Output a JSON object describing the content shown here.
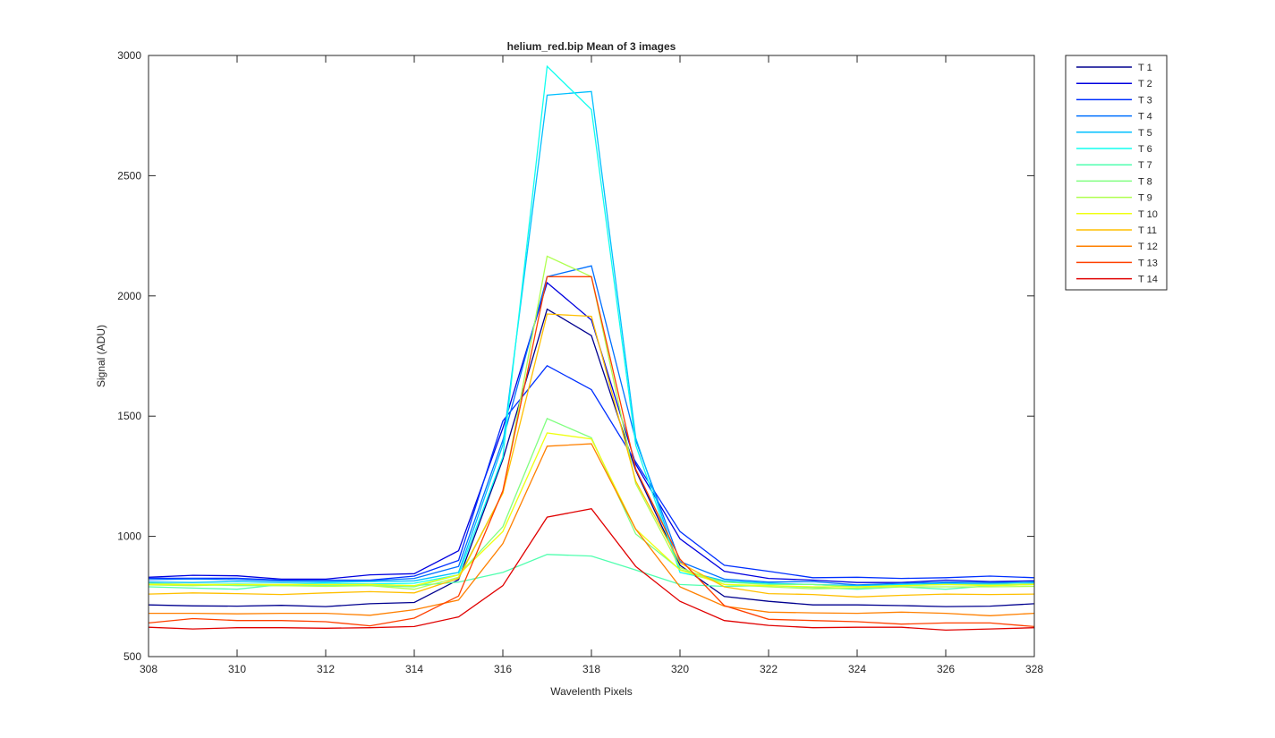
{
  "chart_data": {
    "type": "line",
    "title": "helium_red.bip  Mean of 3 images",
    "xlabel": "Wavelenth Pixels",
    "ylabel": "Signal (ADU)",
    "xlim": [
      308,
      328
    ],
    "ylim": [
      500,
      3000
    ],
    "xticks": [
      308,
      310,
      312,
      314,
      316,
      318,
      320,
      322,
      324,
      326,
      328
    ],
    "yticks": [
      500,
      1000,
      1500,
      2000,
      2500,
      3000
    ],
    "grid": false,
    "legend_position": "outside-top-right",
    "x": [
      308,
      309,
      310,
      311,
      312,
      313,
      314,
      315,
      316,
      317,
      318,
      319,
      320,
      321,
      322,
      323,
      324,
      325,
      326,
      327,
      328
    ],
    "series": [
      {
        "name": "T 1",
        "color": "#00008F",
        "values": [
          715,
          711,
          710,
          713,
          708,
          720,
          725,
          820,
          1320,
          1945,
          1835,
          1275,
          880,
          750,
          730,
          715,
          715,
          712,
          708,
          710,
          720
        ]
      },
      {
        "name": "T 2",
        "color": "#0000DF",
        "values": [
          830,
          838,
          836,
          822,
          822,
          840,
          845,
          940,
          1450,
          2055,
          1900,
          1300,
          990,
          855,
          825,
          818,
          808,
          808,
          818,
          812,
          815
        ]
      },
      {
        "name": "T 3",
        "color": "#0030FF",
        "values": [
          826,
          826,
          826,
          818,
          818,
          818,
          835,
          900,
          1480,
          1710,
          1610,
          1310,
          1020,
          880,
          855,
          828,
          830,
          825,
          828,
          835,
          828
        ]
      },
      {
        "name": "T 4",
        "color": "#0070FF",
        "values": [
          820,
          823,
          820,
          815,
          816,
          816,
          825,
          875,
          1400,
          2080,
          2125,
          1400,
          895,
          822,
          810,
          812,
          798,
          805,
          810,
          808,
          808
        ]
      },
      {
        "name": "T 5",
        "color": "#00BFFF",
        "values": [
          810,
          808,
          812,
          808,
          810,
          812,
          815,
          850,
          1380,
          2835,
          2850,
          1410,
          860,
          815,
          805,
          800,
          795,
          800,
          805,
          803,
          810
        ]
      },
      {
        "name": "T 6",
        "color": "#10FFEF",
        "values": [
          800,
          800,
          802,
          800,
          805,
          802,
          805,
          840,
          1330,
          2955,
          2775,
          1380,
          850,
          810,
          802,
          800,
          790,
          798,
          800,
          797,
          800
        ]
      },
      {
        "name": "T 7",
        "color": "#50FFAF",
        "values": [
          790,
          785,
          780,
          800,
          795,
          800,
          795,
          810,
          850,
          925,
          918,
          860,
          800,
          792,
          795,
          788,
          780,
          790,
          780,
          795,
          800
        ]
      },
      {
        "name": "T 8",
        "color": "#80FF80",
        "values": [
          805,
          800,
          795,
          795,
          795,
          795,
          790,
          840,
          1040,
          1490,
          1410,
          1010,
          862,
          810,
          800,
          800,
          790,
          795,
          800,
          800,
          803
        ]
      },
      {
        "name": "T 9",
        "color": "#AFFF50",
        "values": [
          798,
          795,
          800,
          795,
          792,
          795,
          780,
          830,
          1180,
          2165,
          2080,
          1220,
          870,
          800,
          790,
          782,
          785,
          790,
          790,
          790,
          792
        ]
      },
      {
        "name": "T 10",
        "color": "#EFFF10",
        "values": [
          800,
          800,
          800,
          800,
          800,
          800,
          795,
          840,
          1020,
          1430,
          1405,
          1030,
          860,
          800,
          795,
          790,
          790,
          795,
          800,
          795,
          800
        ]
      },
      {
        "name": "T 11",
        "color": "#FFBF00",
        "values": [
          760,
          765,
          762,
          758,
          765,
          770,
          765,
          825,
          1180,
          1925,
          1915,
          1230,
          890,
          790,
          762,
          758,
          748,
          755,
          760,
          758,
          760
        ]
      },
      {
        "name": "T 12",
        "color": "#FF8000",
        "values": [
          680,
          680,
          678,
          680,
          680,
          672,
          695,
          735,
          970,
          1375,
          1385,
          1030,
          790,
          710,
          685,
          682,
          680,
          685,
          680,
          670,
          680
        ]
      },
      {
        "name": "T 13",
        "color": "#FF4000",
        "values": [
          640,
          658,
          650,
          650,
          645,
          628,
          660,
          752,
          1190,
          2080,
          2080,
          1280,
          905,
          712,
          655,
          650,
          645,
          635,
          640,
          640,
          625
        ]
      },
      {
        "name": "T 14",
        "color": "#E00000",
        "values": [
          622,
          615,
          620,
          620,
          618,
          620,
          625,
          665,
          795,
          1080,
          1115,
          875,
          730,
          650,
          630,
          620,
          622,
          622,
          610,
          615,
          620
        ]
      }
    ]
  }
}
